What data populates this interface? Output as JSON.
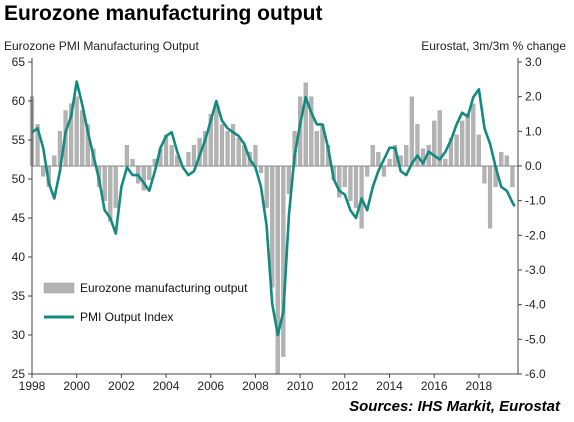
{
  "title": "Eurozone manufacturing output",
  "source": "Sources: IHS Markit, Eurostat",
  "colors": {
    "bars": "#b3b3b3",
    "bar_edge": "#9a9a9a",
    "line": "#138a80",
    "axis": "#444444"
  },
  "chart_data": {
    "type": "bar+line",
    "left_axis_label": "Eurozone PMI Manufacturing Output",
    "right_axis_label": "Eurostat, 3m/3m % change",
    "ylim_left": [
      25,
      65
    ],
    "ylim_right": [
      -6.0,
      3.0
    ],
    "xlim": [
      1998,
      2019.75
    ],
    "left_ticks": [
      "25",
      "30",
      "35",
      "40",
      "45",
      "50",
      "55",
      "60",
      "65"
    ],
    "right_ticks": [
      "-6.0",
      "-5.0",
      "-4.0",
      "-3.0",
      "-2.0",
      "-1.0",
      "0.0",
      "1.0",
      "2.0",
      "3.0"
    ],
    "x_ticks": [
      "1998",
      "2000",
      "2002",
      "2004",
      "2006",
      "2008",
      "2010",
      "2012",
      "2014",
      "2016",
      "2018"
    ],
    "grid": false,
    "legend_position": "bottom-left",
    "series": [
      {
        "name": "Eurozone manufacturing output",
        "type": "bar",
        "axis": "right",
        "x": [
          1998.0,
          1998.25,
          1998.5,
          1998.75,
          1999.0,
          1999.25,
          1999.5,
          1999.75,
          2000.0,
          2000.25,
          2000.5,
          2000.75,
          2001.0,
          2001.25,
          2001.5,
          2001.75,
          2002.0,
          2002.25,
          2002.5,
          2002.75,
          2003.0,
          2003.25,
          2003.5,
          2003.75,
          2004.0,
          2004.25,
          2004.5,
          2004.75,
          2005.0,
          2005.25,
          2005.5,
          2005.75,
          2006.0,
          2006.25,
          2006.5,
          2006.75,
          2007.0,
          2007.25,
          2007.5,
          2007.75,
          2008.0,
          2008.25,
          2008.5,
          2008.75,
          2009.0,
          2009.25,
          2009.5,
          2009.75,
          2010.0,
          2010.25,
          2010.5,
          2010.75,
          2011.0,
          2011.25,
          2011.5,
          2011.75,
          2012.0,
          2012.25,
          2012.5,
          2012.75,
          2013.0,
          2013.25,
          2013.5,
          2013.75,
          2014.0,
          2014.25,
          2014.5,
          2014.75,
          2015.0,
          2015.25,
          2015.5,
          2015.75,
          2016.0,
          2016.25,
          2016.5,
          2016.75,
          2017.0,
          2017.25,
          2017.5,
          2017.75,
          2018.0,
          2018.25,
          2018.5,
          2018.75,
          2019.0,
          2019.25,
          2019.5
        ],
        "values": [
          2.0,
          1.2,
          -0.3,
          -0.6,
          0.3,
          1.0,
          1.6,
          1.8,
          2.0,
          1.6,
          1.2,
          0.5,
          -0.6,
          -1.0,
          -1.6,
          -1.2,
          0.0,
          0.6,
          0.2,
          -0.5,
          -0.7,
          -0.4,
          0.2,
          0.5,
          0.9,
          0.6,
          0.3,
          0.0,
          0.4,
          0.6,
          0.8,
          1.0,
          1.5,
          1.8,
          1.2,
          1.0,
          1.2,
          0.8,
          0.6,
          0.4,
          0.6,
          -0.2,
          -1.2,
          -3.5,
          -6.0,
          -5.5,
          -0.8,
          1.0,
          2.0,
          2.4,
          2.0,
          1.0,
          1.2,
          0.6,
          -0.4,
          -0.9,
          -0.6,
          -1.0,
          -1.2,
          -1.8,
          -0.3,
          0.6,
          0.4,
          -0.3,
          0.2,
          0.6,
          0.3,
          0.6,
          2.0,
          1.2,
          0.5,
          0.6,
          1.3,
          1.6,
          0.2,
          0.8,
          0.9,
          1.3,
          1.5,
          1.8,
          0.9,
          -0.5,
          -1.8,
          -0.6,
          0.4,
          0.3,
          -0.6
        ]
      },
      {
        "name": "PMI Output Index",
        "type": "line",
        "axis": "left",
        "x": [
          1998.0,
          1998.25,
          1998.5,
          1998.75,
          1999.0,
          1999.25,
          1999.5,
          1999.75,
          2000.0,
          2000.25,
          2000.5,
          2000.75,
          2001.0,
          2001.25,
          2001.5,
          2001.75,
          2002.0,
          2002.25,
          2002.5,
          2002.75,
          2003.0,
          2003.25,
          2003.5,
          2003.75,
          2004.0,
          2004.25,
          2004.5,
          2004.75,
          2005.0,
          2005.25,
          2005.5,
          2005.75,
          2006.0,
          2006.25,
          2006.5,
          2006.75,
          2007.0,
          2007.25,
          2007.5,
          2007.75,
          2008.0,
          2008.25,
          2008.5,
          2008.75,
          2009.0,
          2009.25,
          2009.5,
          2009.75,
          2010.0,
          2010.25,
          2010.5,
          2010.75,
          2011.0,
          2011.25,
          2011.5,
          2011.75,
          2012.0,
          2012.25,
          2012.5,
          2012.75,
          2013.0,
          2013.25,
          2013.5,
          2013.75,
          2014.0,
          2014.25,
          2014.5,
          2014.75,
          2015.0,
          2015.25,
          2015.5,
          2015.75,
          2016.0,
          2016.25,
          2016.5,
          2016.75,
          2017.0,
          2017.25,
          2017.5,
          2017.75,
          2018.0,
          2018.25,
          2018.5,
          2018.75,
          2019.0,
          2019.25,
          2019.5,
          2019.6
        ],
        "values": [
          56.0,
          56.5,
          54.0,
          49.5,
          47.5,
          51.0,
          56.0,
          58.0,
          62.5,
          59.5,
          56.0,
          53.0,
          50.0,
          46.0,
          45.0,
          43.0,
          49.0,
          51.5,
          50.5,
          50.5,
          49.5,
          48.5,
          51.0,
          54.0,
          55.5,
          56.0,
          53.5,
          51.5,
          50.5,
          51.0,
          53.0,
          55.0,
          57.5,
          60.0,
          57.5,
          56.5,
          56.0,
          55.5,
          54.5,
          52.5,
          51.5,
          49.0,
          44.0,
          34.0,
          30.0,
          33.0,
          45.5,
          53.0,
          57.0,
          60.5,
          58.5,
          57.0,
          57.0,
          54.0,
          50.0,
          48.5,
          48.0,
          46.0,
          45.0,
          47.5,
          46.0,
          49.0,
          51.0,
          52.5,
          54.0,
          54.0,
          51.0,
          50.5,
          52.0,
          53.0,
          52.0,
          53.5,
          53.0,
          52.5,
          53.5,
          55.0,
          57.0,
          58.5,
          58.0,
          60.5,
          61.5,
          56.5,
          54.5,
          51.5,
          49.0,
          48.5,
          47.0,
          46.5
        ]
      }
    ]
  }
}
